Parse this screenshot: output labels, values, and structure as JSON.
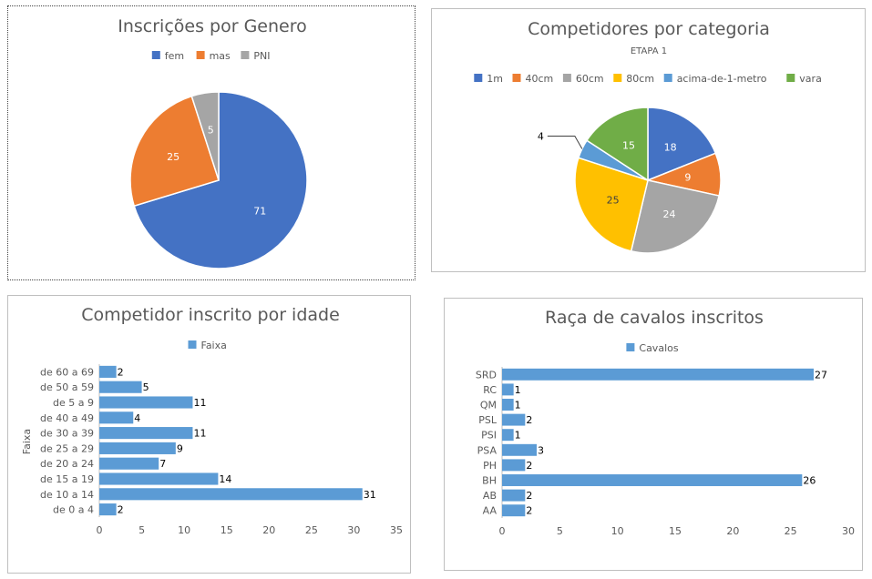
{
  "chart_data": [
    {
      "type": "pie",
      "title": "Inscrições por Genero",
      "categories": [
        "fem",
        "mas",
        "PNI"
      ],
      "values": [
        71,
        25,
        5
      ],
      "colors": [
        "#4472C4",
        "#ED7D31",
        "#A5A5A5"
      ],
      "legend": "top"
    },
    {
      "type": "pie",
      "title": "Competidores por categoria",
      "subtitle": "ETAPA 1",
      "categories": [
        "1m",
        "40cm",
        "60cm",
        "80cm",
        "acima-de-1-metro",
        "vara"
      ],
      "values": [
        18,
        9,
        24,
        25,
        4,
        15
      ],
      "colors": [
        "#4472C4",
        "#ED7D31",
        "#A5A5A5",
        "#FFC000",
        "#5B9BD5",
        "#70AD47"
      ],
      "legend": "top"
    },
    {
      "type": "bar",
      "orientation": "horizontal",
      "title": "Competidor inscrito por idade",
      "categories": [
        "de 0 a 4",
        "de 10 a 14",
        "de 15 a 19",
        "de 20 a 24",
        "de 25 a 29",
        "de 30 a 39",
        "de 40 a 49",
        "de 5 a 9",
        "de 50 a 59",
        "de 60 a 69"
      ],
      "series": [
        {
          "name": "Faixa",
          "values": [
            2,
            31,
            14,
            7,
            9,
            11,
            4,
            11,
            5,
            2
          ]
        }
      ],
      "ylabel": "Faixa",
      "xlim": [
        0,
        35
      ],
      "xticks": [
        0,
        5,
        10,
        15,
        20,
        25,
        30,
        35
      ],
      "color": "#5B9BD5",
      "legend": "top"
    },
    {
      "type": "bar",
      "orientation": "horizontal",
      "title": "Raça de cavalos inscritos",
      "categories": [
        "AA",
        "AB",
        "BH",
        "PH",
        "PSA",
        "PSI",
        "PSL",
        "QM",
        "RC",
        "SRD"
      ],
      "series": [
        {
          "name": "Cavalos",
          "values": [
            2,
            2,
            26,
            2,
            3,
            1,
            2,
            1,
            1,
            27
          ]
        }
      ],
      "xlim": [
        0,
        30
      ],
      "xticks": [
        0,
        5,
        10,
        15,
        20,
        25,
        30
      ],
      "color": "#5B9BD5",
      "legend": "top"
    }
  ]
}
